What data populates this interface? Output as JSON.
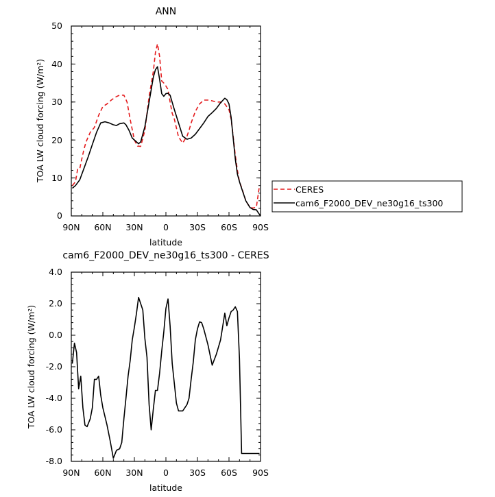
{
  "chart_data": [
    {
      "type": "line",
      "title": "ANN",
      "xlabel": "latitude",
      "ylabel": "TOA LW cloud forcing (W/m²)",
      "xlim": [
        90,
        -90
      ],
      "ylim": [
        0,
        50
      ],
      "xticks": [
        90,
        60,
        30,
        0,
        -30,
        -60,
        -90
      ],
      "xticklabels": [
        "90N",
        "60N",
        "30N",
        "0",
        "30S",
        "60S",
        "90S"
      ],
      "yticks": [
        0,
        10,
        20,
        30,
        40,
        50
      ],
      "yticklabels": [
        "0",
        "10",
        "20",
        "30",
        "40",
        "50"
      ],
      "legend": {
        "placement": "right",
        "entries": [
          "CERES",
          "cam6_F2000_DEV_ne30g16_ts300"
        ]
      },
      "series": [
        {
          "name": "CERES",
          "color": "#e41a1c",
          "style": "dashed",
          "x": [
            89,
            86,
            84,
            82,
            80,
            78,
            76,
            72,
            68,
            64,
            60,
            56,
            52,
            48,
            44,
            40,
            37,
            34,
            30,
            27,
            24,
            20,
            16,
            12,
            10,
            8,
            6,
            4,
            2,
            0,
            -2,
            -4,
            -6,
            -8,
            -12,
            -16,
            -20,
            -22,
            -24,
            -28,
            -32,
            -36,
            -40,
            -44,
            -48,
            -52,
            -56,
            -60,
            -62,
            -64,
            -66,
            -68,
            -70,
            -72,
            -76,
            -80,
            -83,
            -86,
            -88,
            -89
          ],
          "y": [
            8,
            9,
            12.3,
            12.4,
            15,
            17.5,
            19.5,
            22,
            23.3,
            26.5,
            28.8,
            29.5,
            30.5,
            31.3,
            31.8,
            31.8,
            30,
            25.4,
            20,
            18.4,
            18.3,
            22.5,
            31.5,
            38,
            43,
            45.3,
            42,
            35.5,
            35,
            34.2,
            33.3,
            30,
            27,
            25.5,
            20.8,
            19.2,
            21,
            22.5,
            24.5,
            27.5,
            29.5,
            30.5,
            30.5,
            30.3,
            30,
            30,
            29.5,
            28,
            25.5,
            21,
            16,
            12,
            9,
            7.5,
            4,
            2.2,
            2.1,
            2.3,
            6,
            8
          ]
        },
        {
          "name": "cam6_F2000_DEV_ne30g16_ts300",
          "color": "#000000",
          "style": "solid",
          "x": [
            89,
            86,
            82,
            78,
            74,
            70,
            66,
            62,
            58,
            54,
            50,
            47,
            44,
            40,
            38,
            35,
            32,
            28,
            26,
            24,
            20,
            16,
            12,
            10,
            8,
            6,
            4,
            2,
            0,
            -2,
            -4,
            -8,
            -12,
            -16,
            -20,
            -24,
            -28,
            -32,
            -36,
            -40,
            -44,
            -48,
            -52,
            -56,
            -58,
            -60,
            -62,
            -64,
            -66,
            -68,
            -70,
            -72,
            -76,
            -80,
            -83,
            -86,
            -88,
            -90
          ],
          "y": [
            7.3,
            8,
            9.5,
            12.5,
            15.5,
            18.8,
            22,
            24.5,
            24.8,
            24.5,
            24,
            23.8,
            24.3,
            24.5,
            24,
            22.5,
            20.5,
            19.5,
            19,
            19.5,
            23.5,
            30,
            36.5,
            38.5,
            39.3,
            36,
            32.2,
            31.5,
            32.2,
            32.3,
            31.8,
            28,
            24.5,
            21,
            20.2,
            20.5,
            21.5,
            23,
            24.5,
            26.2,
            27.2,
            28.3,
            29.8,
            31,
            30.6,
            29.5,
            26,
            20.5,
            15,
            11,
            9,
            7.3,
            4,
            2.2,
            1.7,
            1.6,
            0.8,
            0
          ]
        }
      ]
    },
    {
      "type": "line",
      "title": "cam6_F2000_DEV_ne30g16_ts300 - CERES",
      "xlabel": "latitude",
      "ylabel": "TOA LW cloud forcing (W/m²)",
      "xlim": [
        90,
        -90
      ],
      "ylim": [
        -8,
        4
      ],
      "xticks": [
        90,
        60,
        30,
        0,
        -30,
        -60,
        -90
      ],
      "xticklabels": [
        "90N",
        "60N",
        "30N",
        "0",
        "30S",
        "60S",
        "90S"
      ],
      "yticks": [
        -8,
        -6,
        -4,
        -2,
        0,
        2,
        4
      ],
      "yticklabels": [
        "-8.0",
        "-6.0",
        "-4.0",
        "-2.0",
        "0.0",
        "2.0",
        "4.0"
      ],
      "series": [
        {
          "color": "#000000",
          "style": "solid",
          "x": [
            89,
            87,
            85,
            83,
            81,
            79,
            77,
            75,
            72,
            70,
            68,
            66,
            64,
            62,
            60,
            56,
            53,
            50,
            47,
            44,
            42,
            40,
            38,
            36,
            34,
            32,
            30,
            28,
            26,
            22,
            20,
            18,
            16,
            14,
            12,
            10,
            8,
            6,
            4,
            2,
            0,
            -2,
            -4,
            -6,
            -10,
            -12,
            -16,
            -20,
            -22,
            -24,
            -26,
            -28,
            -30,
            -32,
            -34,
            -36,
            -40,
            -44,
            -48,
            -52,
            -56,
            -58,
            -60,
            -62,
            -64,
            -66,
            -68,
            -70,
            -72,
            -74,
            -76,
            -78,
            -80,
            -82,
            -84,
            -86,
            -88,
            -89
          ],
          "y": [
            -1.8,
            -0.5,
            -1.1,
            -3.4,
            -2.6,
            -4.6,
            -5.7,
            -5.8,
            -5.3,
            -4.6,
            -2.8,
            -2.8,
            -2.6,
            -3.8,
            -4.6,
            -5.7,
            -6.7,
            -7.8,
            -7.3,
            -7.2,
            -6.8,
            -5.3,
            -4,
            -2.6,
            -1.6,
            -0.3,
            0.5,
            1.4,
            2.4,
            1.6,
            -0.2,
            -1.4,
            -4.4,
            -6,
            -4.7,
            -3.5,
            -3.5,
            -2.4,
            -1,
            0.2,
            1.7,
            2.3,
            0.6,
            -1.8,
            -4.3,
            -4.8,
            -4.8,
            -4.4,
            -4,
            -2.8,
            -1.7,
            -0.3,
            0.4,
            0.85,
            0.8,
            0.4,
            -0.6,
            -1.9,
            -1.2,
            -0.3,
            1.4,
            0.6,
            1.1,
            1.5,
            1.6,
            1.8,
            1.5,
            -1.5,
            -7.5,
            -7.5,
            -7.5,
            -7.5,
            -7.5,
            -7.5,
            -7.5,
            -7.5,
            -7.5,
            -7.5
          ]
        }
      ]
    }
  ]
}
